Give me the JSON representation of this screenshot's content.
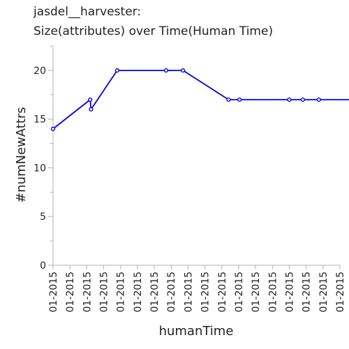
{
  "chart_data": {
    "type": "line",
    "title_line1": "jasdel__harvester:",
    "title_line2": "Size(attributes) over Time(Human Time)",
    "xlabel": "humanTime",
    "ylabel": "#numNewAttrs",
    "ylim": [
      0,
      22.5
    ],
    "yticks": [
      0,
      5,
      10,
      15,
      20
    ],
    "xticks": [
      "01-2015",
      "01-2015",
      "01-2015",
      "01-2015",
      "01-2015",
      "01-2015",
      "01-2015",
      "01-2015",
      "01-2015",
      "01-2015",
      "01-2015",
      "01-2015",
      "01-2015",
      "01-2015",
      "01-2015",
      "01-2015",
      "01-2015",
      "01-2015"
    ],
    "grid": false,
    "color": "#0000dd",
    "series": [
      {
        "points": [
          {
            "x": 0.0,
            "y": 14
          },
          {
            "x": 2.2,
            "y": 17
          },
          {
            "x": 2.25,
            "y": 16
          },
          {
            "x": 3.8,
            "y": 20
          },
          {
            "x": 6.7,
            "y": 20
          },
          {
            "x": 7.7,
            "y": 20
          },
          {
            "x": 10.4,
            "y": 17
          },
          {
            "x": 11.05,
            "y": 17
          },
          {
            "x": 14.0,
            "y": 17
          },
          {
            "x": 14.8,
            "y": 17
          },
          {
            "x": 15.75,
            "y": 17
          },
          {
            "x": 18.0,
            "y": 17
          }
        ]
      }
    ]
  }
}
